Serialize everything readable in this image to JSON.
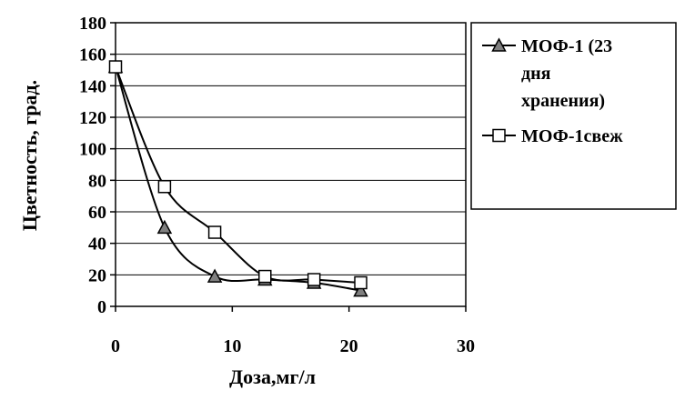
{
  "chart_data": {
    "type": "line",
    "xlabel": "Доза,мг/л",
    "ylabel": "Цветность, град.",
    "xlim": [
      0,
      30
    ],
    "ylim": [
      0,
      180
    ],
    "xticks": [
      "0",
      "10",
      "20",
      "30"
    ],
    "yticks": [
      "0",
      "20",
      "40",
      "60",
      "80",
      "100",
      "120",
      "140",
      "160",
      "180"
    ],
    "grid": "horizontal",
    "legend_position": "right",
    "series": [
      {
        "name": "МОФ-1 (23 дня хранения)",
        "name_lines": [
          "МОФ-1 (23",
          "дня",
          "хранения)"
        ],
        "marker": "triangle",
        "x": [
          0,
          4.2,
          8.5,
          12.8,
          17,
          21
        ],
        "y": [
          152,
          50,
          19,
          17,
          15,
          10
        ]
      },
      {
        "name": "МОФ-1свеж",
        "name_lines": [
          "МОФ-1свеж"
        ],
        "marker": "square",
        "x": [
          0,
          4.2,
          8.5,
          12.8,
          17,
          21
        ],
        "y": [
          152,
          76,
          47,
          19,
          17,
          15
        ]
      }
    ]
  }
}
